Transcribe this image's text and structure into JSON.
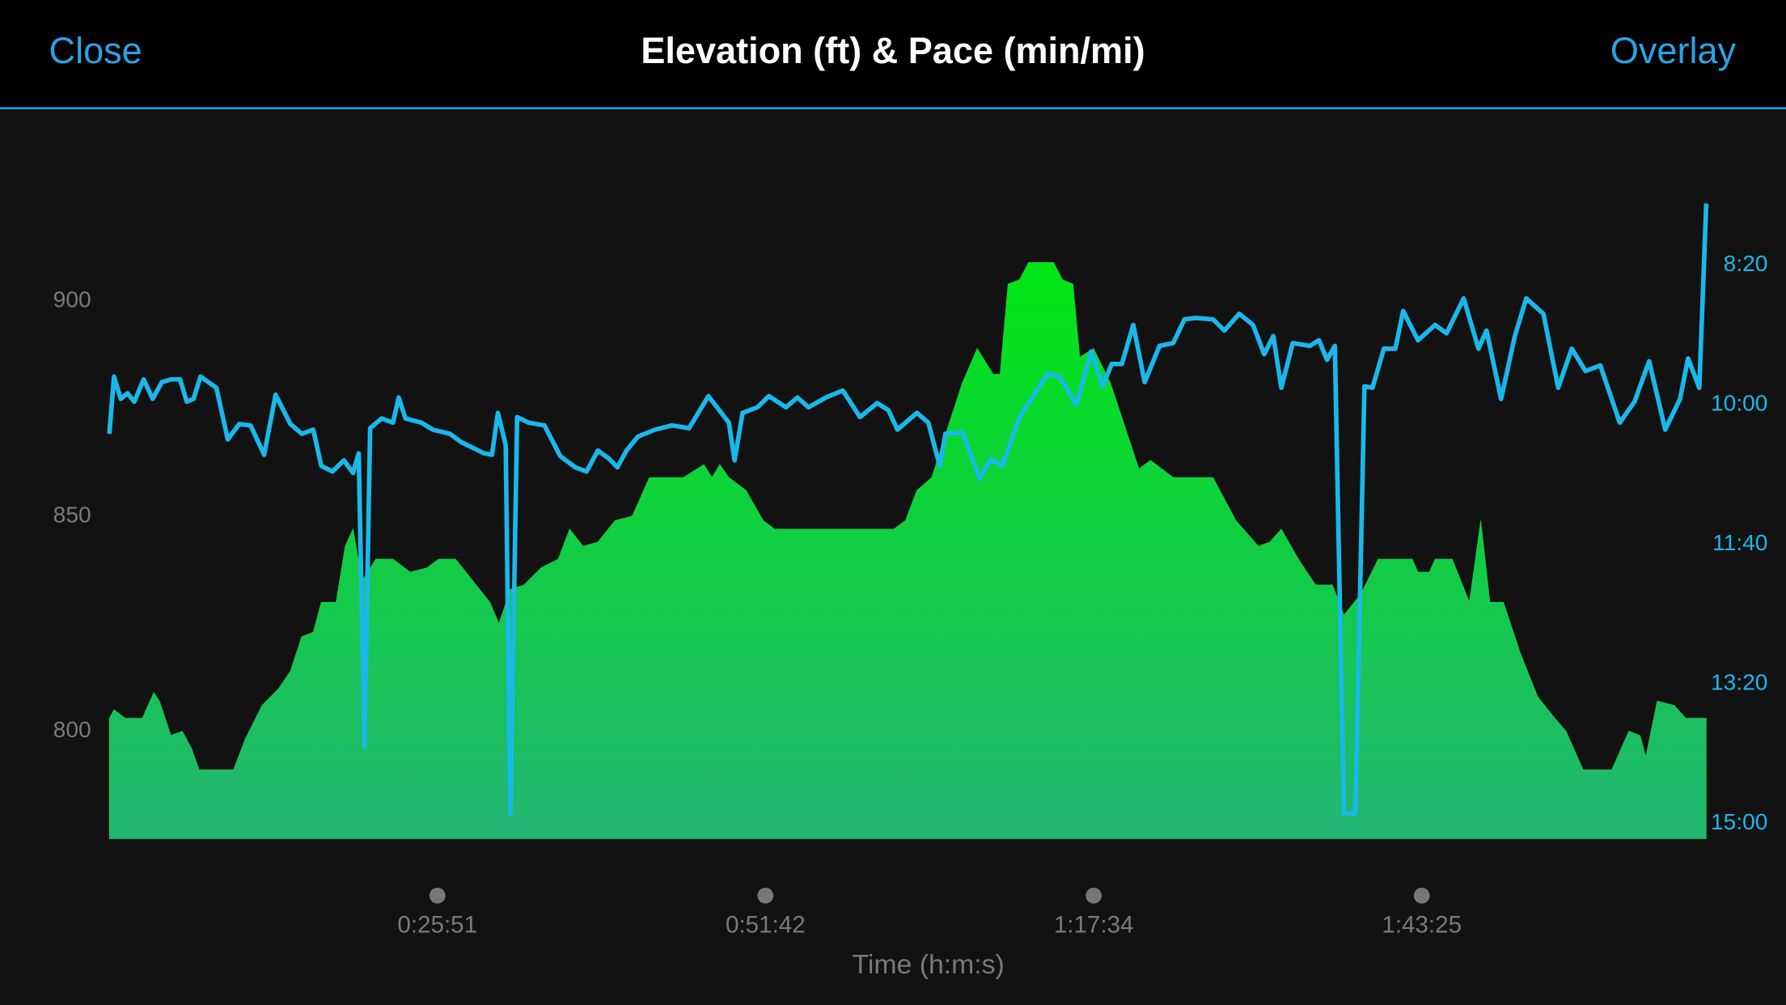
{
  "header": {
    "left": "Close",
    "right": "Overlay"
  },
  "chart_data": {
    "type": "area",
    "title": "Elevation (ft) & Pace (min/mi)",
    "x_label": "Time (h:m:s)",
    "xlim": [
      0,
      7550
    ],
    "xticks": [
      {
        "value": 1551,
        "label": "0:25:51"
      },
      {
        "value": 3102,
        "label": "0:51:42"
      },
      {
        "value": 4654,
        "label": "1:17:34"
      },
      {
        "value": 6205,
        "label": "1:43:25"
      }
    ],
    "ylim": [
      775,
      925
    ],
    "yticks": [
      800,
      850,
      900
    ],
    "y2lim": [
      911,
      449
    ],
    "y2ticks": [
      {
        "value": 500,
        "label": "8:20"
      },
      {
        "value": 600,
        "label": "10:00"
      },
      {
        "value": 700,
        "label": "11:40"
      },
      {
        "value": 800,
        "label": "13:20"
      },
      {
        "value": 900,
        "label": "15:00"
      }
    ],
    "series": [
      {
        "type": "area",
        "color": "#1cc94c",
        "gradient": [
          "#00e614",
          "#22b573"
        ],
        "x": [
          0,
          22,
          75,
          156,
          210,
          237,
          291,
          345,
          388,
          425,
          587,
          641,
          722,
          802,
          856,
          910,
          964,
          1002,
          1072,
          1115,
          1152,
          1195,
          1260,
          1341,
          1422,
          1502,
          1556,
          1637,
          1718,
          1799,
          1842,
          1896,
          1960,
          2041,
          2122,
          2176,
          2240,
          2310,
          2391,
          2472,
          2553,
          2714,
          2811,
          2849,
          2886,
          2929,
          3010,
          3091,
          3145,
          3333,
          3387,
          3710,
          3764,
          3818,
          3888,
          3953,
          4033,
          4103,
          4179,
          4211,
          4249,
          4303,
          4346,
          4464,
          4507,
          4556,
          4588,
          4653,
          4733,
          4814,
          4868,
          4922,
          4976,
          5030,
          5218,
          5326,
          5433,
          5487,
          5541,
          5622,
          5703,
          5783,
          5837,
          5918,
          5999,
          6160,
          6187,
          6241,
          6268,
          6349,
          6430,
          6484,
          6527,
          6591,
          6672,
          6753,
          6834,
          6887,
          6968,
          7103,
          7184,
          7237,
          7264,
          7318,
          7399,
          7453,
          7550
        ],
        "values": [
          803,
          805,
          803,
          803,
          809,
          807,
          799,
          800,
          796,
          791,
          791,
          798,
          806,
          810,
          814,
          822,
          823,
          830,
          830,
          843,
          847,
          835,
          840,
          840,
          837,
          838,
          840,
          840,
          835,
          830,
          825,
          833,
          834,
          838,
          840,
          847,
          843,
          844,
          849,
          850,
          859,
          859,
          862,
          859,
          862,
          859,
          856,
          849,
          847,
          847,
          847,
          847,
          849,
          856,
          859,
          869,
          881,
          889,
          883,
          883,
          904,
          905,
          909,
          909,
          905,
          904,
          887,
          889,
          881,
          869,
          861,
          863,
          861,
          859,
          859,
          849,
          843,
          844,
          847,
          840,
          834,
          834,
          827,
          832,
          840,
          840,
          837,
          837,
          840,
          840,
          830,
          849,
          830,
          830,
          818,
          808,
          803,
          800,
          791,
          791,
          800,
          799,
          794,
          807,
          806,
          803,
          803
        ]
      },
      {
        "type": "line",
        "axis": "y2",
        "color": "#1ab8ea",
        "x": [
          0,
          22,
          54,
          86,
          118,
          162,
          205,
          248,
          291,
          334,
          366,
          398,
          431,
          506,
          560,
          614,
          668,
          732,
          786,
          856,
          910,
          964,
          1002,
          1055,
          1109,
          1152,
          1179,
          1206,
          1233,
          1287,
          1341,
          1368,
          1400,
          1475,
          1529,
          1610,
          1664,
          1772,
          1809,
          1837,
          1874,
          1896,
          1928,
          1982,
          2057,
          2132,
          2203,
          2256,
          2310,
          2364,
          2402,
          2445,
          2499,
          2580,
          2660,
          2741,
          2832,
          2929,
          2956,
          2994,
          3064,
          3118,
          3199,
          3253,
          3306,
          3387,
          3468,
          3549,
          3630,
          3683,
          3726,
          3818,
          3872,
          3926,
          3953,
          4033,
          4114,
          4168,
          4222,
          4303,
          4437,
          4491,
          4572,
          4642,
          4696,
          4739,
          4787,
          4841,
          4895,
          4965,
          5030,
          5083,
          5137,
          5218,
          5272,
          5342,
          5407,
          5460,
          5503,
          5541,
          5595,
          5676,
          5719,
          5757,
          5794,
          5837,
          5891,
          5934,
          5972,
          6026,
          6080,
          6117,
          6187,
          6268,
          6322,
          6403,
          6473,
          6511,
          6580,
          6645,
          6699,
          6780,
          6850,
          6914,
          6979,
          7049,
          7141,
          7211,
          7280,
          7356,
          7426,
          7464,
          7517,
          7550
        ],
        "values": [
          621,
          580,
          596,
          592,
          598,
          582,
          596,
          584,
          582,
          582,
          598,
          596,
          580,
          588,
          625,
          614,
          615,
          636,
          593,
          614,
          621,
          618,
          644,
          648,
          640,
          649,
          635,
          845,
          617,
          610,
          613,
          595,
          610,
          613,
          618,
          621,
          627,
          635,
          636,
          606,
          629,
          893,
          609,
          613,
          615,
          637,
          645,
          648,
          633,
          639,
          645,
          633,
          623,
          618,
          615,
          617,
          594,
          613,
          640,
          606,
          602,
          594,
          602,
          595,
          602,
          595,
          590,
          609,
          599,
          604,
          618,
          606,
          613,
          644,
          621,
          620,
          653,
          639,
          644,
          609,
          578,
          580,
          600,
          562,
          587,
          571,
          571,
          543,
          584,
          558,
          556,
          539,
          538,
          539,
          547,
          535,
          543,
          564,
          551,
          588,
          556,
          558,
          554,
          568,
          558,
          893,
          893,
          587,
          588,
          560,
          560,
          533,
          554,
          543,
          549,
          524,
          560,
          547,
          596,
          551,
          524,
          535,
          588,
          560,
          576,
          572,
          613,
          598,
          569,
          618,
          596,
          567,
          588,
          456
        ]
      }
    ]
  }
}
